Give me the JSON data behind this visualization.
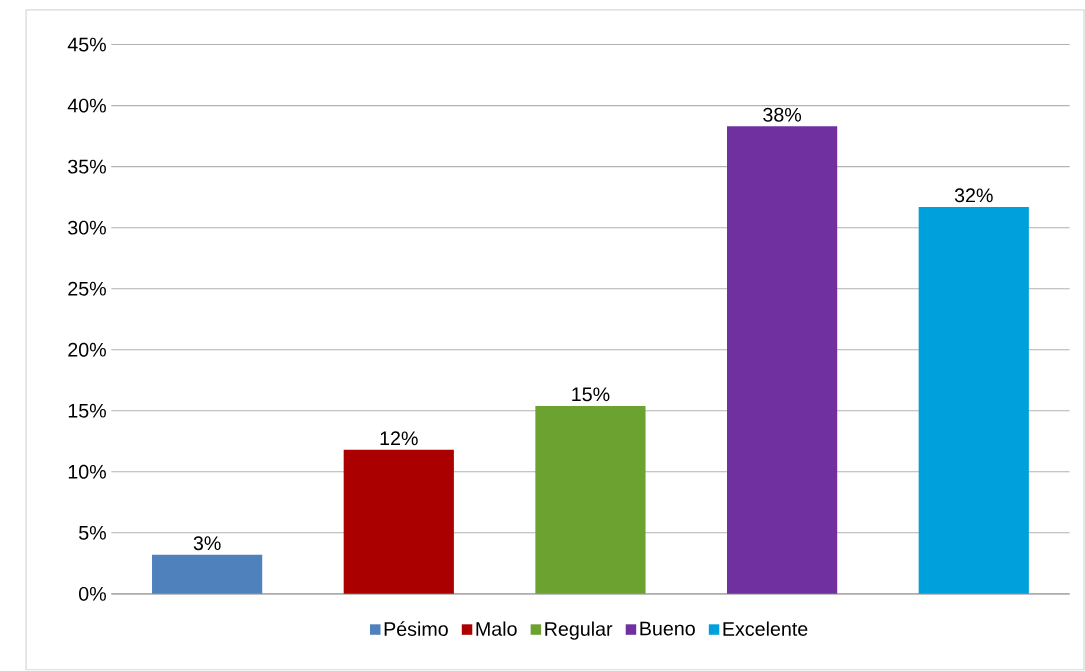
{
  "chart_data": {
    "type": "bar",
    "categories": [
      null
    ],
    "series": [
      {
        "name": "Pésimo",
        "color": "#4f81bd",
        "values": [
          3.2
        ],
        "value_labels": [
          "3%"
        ]
      },
      {
        "name": "Malo",
        "color": "#aa0000",
        "values": [
          11.8
        ],
        "value_labels": [
          "12%"
        ]
      },
      {
        "name": "Regular",
        "color": "#6ca22f",
        "values": [
          15.4
        ],
        "value_labels": [
          "15%"
        ]
      },
      {
        "name": "Bueno",
        "color": "#7030a0",
        "values": [
          38.3
        ],
        "value_labels": [
          "38%"
        ]
      },
      {
        "name": "Excelente",
        "color": "#00a0dc",
        "values": [
          31.7
        ],
        "value_labels": [
          "32%"
        ]
      }
    ],
    "ylim": [
      0,
      45
    ],
    "yticks": [
      {
        "value": 0,
        "label": "0%"
      },
      {
        "value": 5,
        "label": "5%"
      },
      {
        "value": 10,
        "label": "10%"
      },
      {
        "value": 15,
        "label": "15%"
      },
      {
        "value": 20,
        "label": "20%"
      },
      {
        "value": 25,
        "label": "25%"
      },
      {
        "value": 30,
        "label": "30%"
      },
      {
        "value": 35,
        "label": "35%"
      },
      {
        "value": 40,
        "label": "40%"
      },
      {
        "value": 45,
        "label": "45%"
      }
    ],
    "grid": "y",
    "legend": "bottom"
  }
}
